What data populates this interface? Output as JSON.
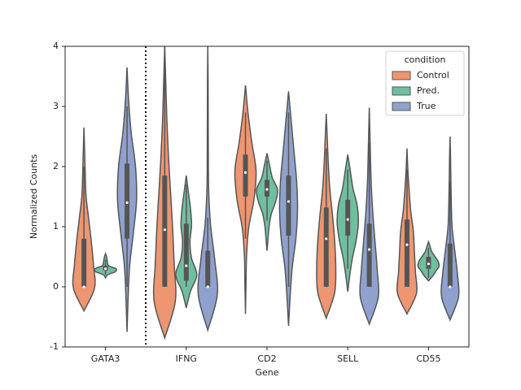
{
  "chart_data": {
    "type": "violin",
    "xlabel": "Gene",
    "ylabel": "Normalized Counts",
    "categories": [
      "GATA3",
      "IFNG",
      "CD2",
      "SELL",
      "CD55"
    ],
    "ylim": [
      -1,
      4
    ],
    "yticks": [
      -1,
      0,
      1,
      2,
      3,
      4
    ],
    "legend": {
      "title": "condition",
      "loc": "upper right"
    },
    "series": [
      {
        "name": "Control",
        "color": "#ee9671",
        "violins": [
          {
            "min": -0.4,
            "whisker_low": 0,
            "q1": 0,
            "median": 0,
            "q3": 0.8,
            "whisker_high": 2.0,
            "max": 2.65,
            "density": [
              1.0,
              0.9,
              0.7,
              0.45,
              0.2,
              0.12,
              0.06
            ]
          },
          {
            "min": -0.85,
            "whisker_low": 0,
            "q1": 0,
            "median": 0.95,
            "q3": 1.85,
            "whisker_high": 4.0,
            "max": 4.0,
            "density": [
              1.0,
              0.9,
              0.75,
              0.55,
              0.35,
              0.2,
              0.1
            ]
          },
          {
            "min": -0.45,
            "whisker_low": 0.8,
            "q1": 1.5,
            "median": 1.9,
            "q3": 2.2,
            "whisker_high": 2.9,
            "max": 3.35,
            "density": [
              0.05,
              0.1,
              0.3,
              0.8,
              1.0,
              0.6,
              0.25
            ]
          },
          {
            "min": -0.52,
            "whisker_low": 0,
            "q1": 0,
            "median": 0.8,
            "q3": 1.32,
            "whisker_high": 2.3,
            "max": 2.88,
            "density": [
              0.8,
              0.9,
              0.8,
              0.6,
              0.35,
              0.2,
              0.1
            ]
          },
          {
            "min": -0.45,
            "whisker_low": 0,
            "q1": 0,
            "median": 0.7,
            "q3": 1.12,
            "whisker_high": 1.95,
            "max": 2.3,
            "density": [
              0.9,
              0.8,
              0.7,
              0.6,
              0.35,
              0.2,
              0.08
            ]
          }
        ]
      },
      {
        "name": "Pred.",
        "color": "#6fbf9f",
        "violins": [
          {
            "min": 0.15,
            "whisker_low": 0.2,
            "q1": 0.27,
            "median": 0.3,
            "q3": 0.35,
            "whisker_high": 0.45,
            "max": 0.55,
            "density": [
              0.2,
              0.9,
              1.0,
              0.3,
              0.2,
              0.15,
              0.1
            ]
          },
          {
            "min": -0.35,
            "whisker_low": 0,
            "q1": 0.1,
            "median": 0.35,
            "q3": 1.05,
            "whisker_high": 1.7,
            "max": 1.85,
            "density": [
              0.4,
              1.0,
              0.5,
              0.35,
              0.5,
              0.4,
              0.2
            ]
          },
          {
            "min": 0.6,
            "whisker_low": 1.1,
            "q1": 1.5,
            "median": 1.62,
            "q3": 1.78,
            "whisker_high": 2.1,
            "max": 2.22,
            "density": [
              0.1,
              0.2,
              0.4,
              0.8,
              1.0,
              0.5,
              0.25
            ]
          },
          {
            "min": -0.08,
            "whisker_low": 0.3,
            "q1": 0.85,
            "median": 1.12,
            "q3": 1.45,
            "whisker_high": 1.95,
            "max": 2.2,
            "density": [
              0.2,
              0.45,
              0.8,
              1.0,
              0.9,
              0.5,
              0.25
            ]
          },
          {
            "min": 0.1,
            "whisker_low": 0.15,
            "q1": 0.3,
            "median": 0.38,
            "q3": 0.5,
            "whisker_high": 0.65,
            "max": 0.75,
            "density": [
              0.4,
              0.7,
              1.0,
              0.9,
              0.6,
              0.3,
              0.15
            ]
          }
        ]
      },
      {
        "name": "True",
        "color": "#8fa1cc",
        "violins": [
          {
            "min": -0.75,
            "whisker_low": 0,
            "q1": 0.8,
            "median": 1.4,
            "q3": 2.05,
            "whisker_high": 3.0,
            "max": 3.65,
            "density": [
              0.1,
              0.25,
              0.6,
              0.9,
              0.8,
              0.4,
              0.15
            ]
          },
          {
            "min": -0.72,
            "whisker_low": 0,
            "q1": 0,
            "median": 0,
            "q3": 0.6,
            "whisker_high": 1.15,
            "max": 4.0,
            "density": [
              0.9,
              0.65,
              0.25,
              0.08,
              0.05,
              0.04,
              0.03
            ]
          },
          {
            "min": -0.65,
            "whisker_low": 0,
            "q1": 0.85,
            "median": 1.42,
            "q3": 1.85,
            "whisker_high": 2.9,
            "max": 3.25,
            "density": [
              0.15,
              0.35,
              0.7,
              0.85,
              0.75,
              0.5,
              0.25
            ]
          },
          {
            "min": -0.62,
            "whisker_low": 0,
            "q1": 0,
            "median": 0.62,
            "q3": 1.05,
            "whisker_high": 2.4,
            "max": 2.98,
            "density": [
              0.85,
              0.75,
              0.55,
              0.35,
              0.2,
              0.12,
              0.06
            ]
          },
          {
            "min": -0.55,
            "whisker_low": 0,
            "q1": 0,
            "median": 0,
            "q3": 0.72,
            "whisker_high": 1.75,
            "max": 2.5,
            "density": [
              0.8,
              0.7,
              0.45,
              0.2,
              0.12,
              0.08,
              0.05
            ]
          }
        ]
      }
    ]
  }
}
